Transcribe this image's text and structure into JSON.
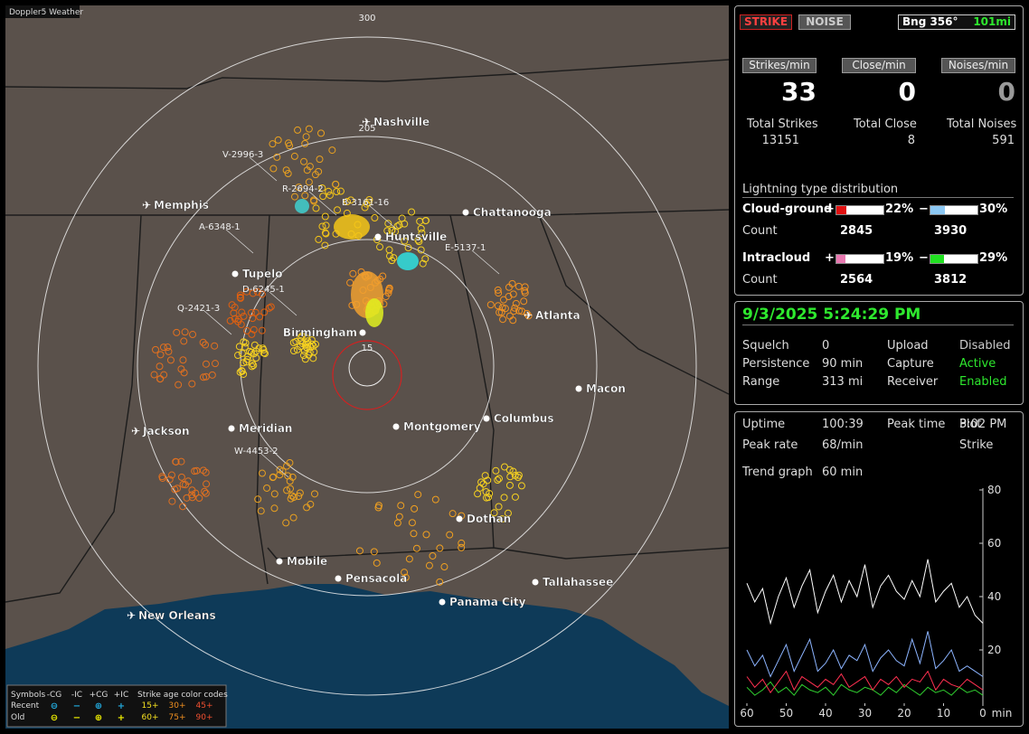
{
  "app_title": "Doppler5 Weather",
  "map": {
    "ring_labels": [
      300,
      205,
      15
    ],
    "cities": [
      "Nashville",
      "Memphis",
      "Chattanooga",
      "Huntsville",
      "Tupelo",
      "Atlanta",
      "Birmingham",
      "Macon",
      "Jackson",
      "Meridian",
      "Montgomery",
      "Columbus",
      "Dothan",
      "Mobile",
      "Pensacola",
      "Tallahassee",
      "Panama City",
      "New Orleans"
    ],
    "cell_labels": [
      "V-2996-3",
      "R-2694-2",
      "B-3161-16",
      "A-6348-1",
      "E-5137-1",
      "D-6245-1",
      "Q-2421-3",
      "W-4453-2"
    ],
    "legend": {
      "symbols_label": "Symbols",
      "types": [
        "-CG",
        "-IC",
        "+CG",
        "+IC"
      ],
      "age_label": "Strike age color codes",
      "rows": [
        "Recent",
        "Old"
      ],
      "ages": [
        [
          "15+",
          "30+",
          "45+"
        ],
        [
          "60+",
          "75+",
          "90+"
        ]
      ]
    }
  },
  "status": {
    "strike_button": "STRIKE",
    "noise_button": "NOISE",
    "bearing": "Bng 356°",
    "distance": "101mi",
    "rate_headers": [
      "Strikes/min",
      "Close/min",
      "Noises/min"
    ],
    "rates": [
      33,
      0,
      0
    ],
    "total_labels": [
      "Total Strikes",
      "Total Close",
      "Total Noises"
    ],
    "totals": [
      13151,
      8,
      591
    ],
    "distribution_title": "Lightning type distribution",
    "count_label": "Count",
    "types": [
      {
        "name": "Cloud-ground",
        "positive": {
          "sign": "+",
          "percent": {
            "value": 22,
            "label": "22%"
          },
          "color": "#e01010",
          "count": 2845
        },
        "negative": {
          "sign": "−",
          "percent": {
            "value": 30,
            "label": "30%"
          },
          "color": "#8cc8f4",
          "count": 3930
        }
      },
      {
        "name": "Intracloud",
        "positive": {
          "sign": "+",
          "percent": {
            "value": 19,
            "label": "19%"
          },
          "color": "#e878b0",
          "count": 2564
        },
        "negative": {
          "sign": "−",
          "percent": {
            "value": 29,
            "label": "29%"
          },
          "color": "#20e020",
          "count": 3812
        }
      }
    ]
  },
  "settings": {
    "datetime": "9/3/2025 5:24:29 PM",
    "rows": [
      [
        "Squelch",
        "0",
        "Upload",
        "Disabled"
      ],
      [
        "Persistence",
        "90 min",
        "Capture",
        "Active"
      ],
      [
        "Range",
        "313 mi",
        "Receiver",
        "Enabled"
      ]
    ]
  },
  "uptime": {
    "rows": [
      [
        "Uptime",
        "100:39",
        "Peak time",
        "3:02 PM",
        "Plot"
      ],
      [
        "Peak rate",
        "68/min",
        "",
        "",
        "Strike"
      ]
    ],
    "trend_label": "Trend graph",
    "trend_window": "60 min"
  },
  "chart_data": {
    "type": "line",
    "xlabel": "min",
    "x": [
      60,
      58,
      56,
      54,
      52,
      50,
      48,
      46,
      44,
      42,
      40,
      38,
      36,
      34,
      32,
      30,
      28,
      26,
      24,
      22,
      20,
      18,
      16,
      14,
      12,
      10,
      8,
      6,
      4,
      2,
      0
    ],
    "xlim": [
      60,
      0
    ],
    "xticks": [
      60,
      50,
      40,
      30,
      20,
      10,
      0
    ],
    "ylim": [
      0,
      80
    ],
    "yticks": [
      20,
      40,
      60,
      80
    ],
    "series": [
      {
        "color": "#ffffff",
        "values": [
          45,
          38,
          43,
          30,
          40,
          47,
          36,
          44,
          50,
          34,
          42,
          48,
          38,
          46,
          40,
          52,
          36,
          44,
          48,
          42,
          39,
          46,
          40,
          54,
          38,
          42,
          45,
          36,
          40,
          33,
          30
        ]
      },
      {
        "color": "#8cb4ff",
        "values": [
          20,
          14,
          18,
          10,
          16,
          22,
          12,
          18,
          24,
          12,
          15,
          20,
          13,
          18,
          16,
          22,
          12,
          17,
          20,
          16,
          14,
          24,
          15,
          27,
          13,
          16,
          20,
          12,
          14,
          12,
          10
        ]
      },
      {
        "color": "#ff3050",
        "values": [
          10,
          6,
          9,
          4,
          8,
          12,
          5,
          10,
          8,
          6,
          9,
          7,
          11,
          6,
          8,
          10,
          5,
          9,
          7,
          10,
          6,
          9,
          8,
          12,
          5,
          9,
          7,
          6,
          9,
          7,
          5
        ]
      },
      {
        "color": "#30d030",
        "values": [
          6,
          3,
          5,
          8,
          4,
          6,
          3,
          7,
          5,
          4,
          6,
          3,
          7,
          5,
          4,
          6,
          5,
          3,
          6,
          4,
          7,
          5,
          3,
          6,
          4,
          5,
          3,
          6,
          4,
          5,
          3
        ]
      }
    ]
  }
}
